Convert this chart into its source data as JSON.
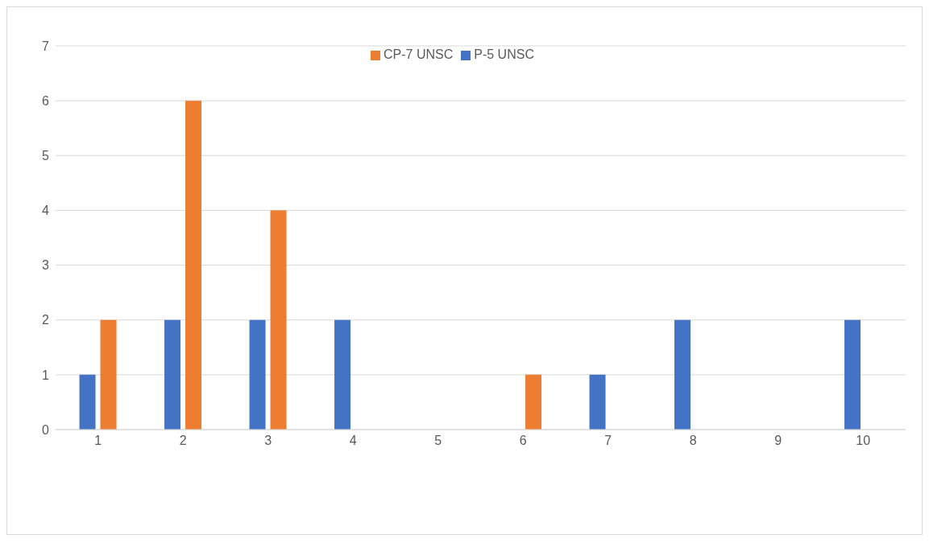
{
  "chart_data": {
    "type": "bar",
    "categories": [
      "1",
      "2",
      "3",
      "4",
      "5",
      "6",
      "7",
      "8",
      "9",
      "10"
    ],
    "series": [
      {
        "name": "P-5 UNSC",
        "color": "#4472c4",
        "values": [
          1,
          2,
          2,
          2,
          0,
          0,
          1,
          2,
          0,
          2
        ]
      },
      {
        "name": "CP-7 UNSC",
        "color": "#ed7d31",
        "values": [
          2,
          6,
          4,
          0,
          0,
          1,
          0,
          0,
          0,
          0
        ]
      }
    ],
    "ylim": [
      0,
      7
    ],
    "yticks": [
      0,
      1,
      2,
      3,
      4,
      5,
      6,
      7
    ],
    "grid": "y",
    "legend": "top"
  }
}
